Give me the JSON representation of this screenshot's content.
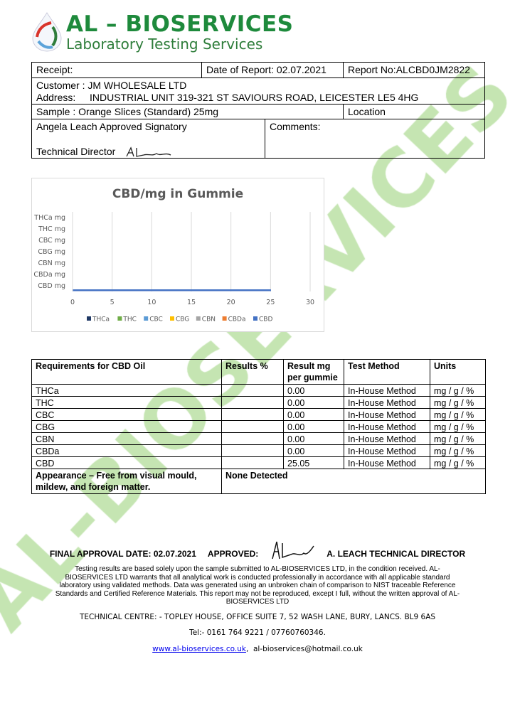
{
  "header": {
    "company": "AL – BIOSERVICES",
    "tagline": "Laboratory Testing Services"
  },
  "info": {
    "receipt": "Receipt:",
    "date_of_report": "Date of Report: 02.07.2021",
    "report_no": "Report No:ALCBD0JM2822",
    "customer": "Customer : JM WHOLESALE LTD",
    "address_label": "Address:",
    "address": "INDUSTRIAL UNIT 319-321 ST SAVIOURS ROAD, LEICESTER LE5 4HG",
    "sample": "Sample : Orange Slices (Standard) 25mg",
    "location": "Location",
    "signatory": "Angela Leach Approved Signatory",
    "technical_director": "Technical Director",
    "comments": "Comments:"
  },
  "chart_data": {
    "type": "bar",
    "orientation": "horizontal",
    "title": "CBD/mg in Gummie",
    "categories": [
      "CBD mg",
      "CBDa mg",
      "CBN mg",
      "CBG mg",
      "CBC mg",
      "THC mg",
      "THCa mg"
    ],
    "series": [
      {
        "name": "THCa",
        "color": "#1f3864",
        "values": [
          0,
          0,
          0,
          0,
          0,
          0,
          0
        ]
      },
      {
        "name": "THC",
        "color": "#70ad47",
        "values": [
          0,
          0,
          0,
          0,
          0,
          0,
          0
        ]
      },
      {
        "name": "CBC",
        "color": "#5b9bd5",
        "values": [
          0,
          0,
          0,
          0,
          0,
          0,
          0
        ]
      },
      {
        "name": "CBG",
        "color": "#ffc000",
        "values": [
          0,
          0,
          0,
          0,
          0,
          0,
          0
        ]
      },
      {
        "name": "CBN",
        "color": "#a5a5a5",
        "values": [
          0,
          0,
          0,
          0,
          0,
          0,
          0
        ]
      },
      {
        "name": "CBDa",
        "color": "#ed7d31",
        "values": [
          0,
          0,
          0,
          0,
          0,
          0,
          0
        ]
      },
      {
        "name": "CBD",
        "color": "#4472c4",
        "values": [
          25.05,
          0,
          0,
          0,
          0,
          0,
          0
        ]
      }
    ],
    "xlim": [
      0,
      30
    ],
    "xticks": [
      "0",
      "5",
      "10",
      "15",
      "20",
      "25",
      "30"
    ],
    "grid": true,
    "legend": "bottom"
  },
  "results": {
    "headers": [
      "Requirements for CBD Oil",
      "Results %",
      "Result mg per gummie",
      "Test Method",
      "Units"
    ],
    "rows": [
      [
        "THCa",
        "",
        "0.00",
        "In-House Method",
        "mg / g / %"
      ],
      [
        "THC",
        "",
        "0.00",
        "In-House Method",
        "mg / g / %"
      ],
      [
        "CBC",
        "",
        "0.00",
        "In-House Method",
        "mg / g / %"
      ],
      [
        "CBG",
        "",
        "0.00",
        "In-House Method",
        "mg / g / %"
      ],
      [
        "CBN",
        "",
        "0.00",
        "In-House Method",
        "mg / g / %"
      ],
      [
        "CBDa",
        "",
        "0.00",
        "In-House Method",
        "mg / g / %"
      ],
      [
        "CBD",
        "",
        "25.05",
        "In-House Method",
        "mg / g / %"
      ]
    ],
    "appearance": "Appearance – Free from visual mould, mildew, and foreign matter.",
    "appearance_result": "None Detected"
  },
  "approval": {
    "date": "FINAL APPROVAL DATE: 02.07.2021",
    "approved": "APPROVED:",
    "director": "A. LEACH TECHNICAL DIRECTOR"
  },
  "disclaimer": "Testing results are based solely upon the sample submitted to AL-BIOSERVICES LTD, in the condition received. AL-BIOSERVICES LTD warrants that all analytical work is conducted professionally in accordance with all applicable standard laboratory using validated methods. Data was generated using an unbroken chain of comparison to NIST traceable Reference Standards and Certified Reference Materials. This report may not be reproduced, except I full, without the written approval of AL-BIOSERVICES LTD",
  "footer": {
    "address": "TECHNICAL CENTRE: - TOPLEY HOUSE, OFFICE SUITE 7, 52 WASH LANE, BURY, LANCS. BL9 6AS",
    "tel": "Tel:- 0161 764 9221 / 07760760346.",
    "website": "www.al-bioservices.co.uk",
    "email": "al-bioservices@hotmail.co.uk"
  },
  "watermark": "AL-BIOSERVICES"
}
